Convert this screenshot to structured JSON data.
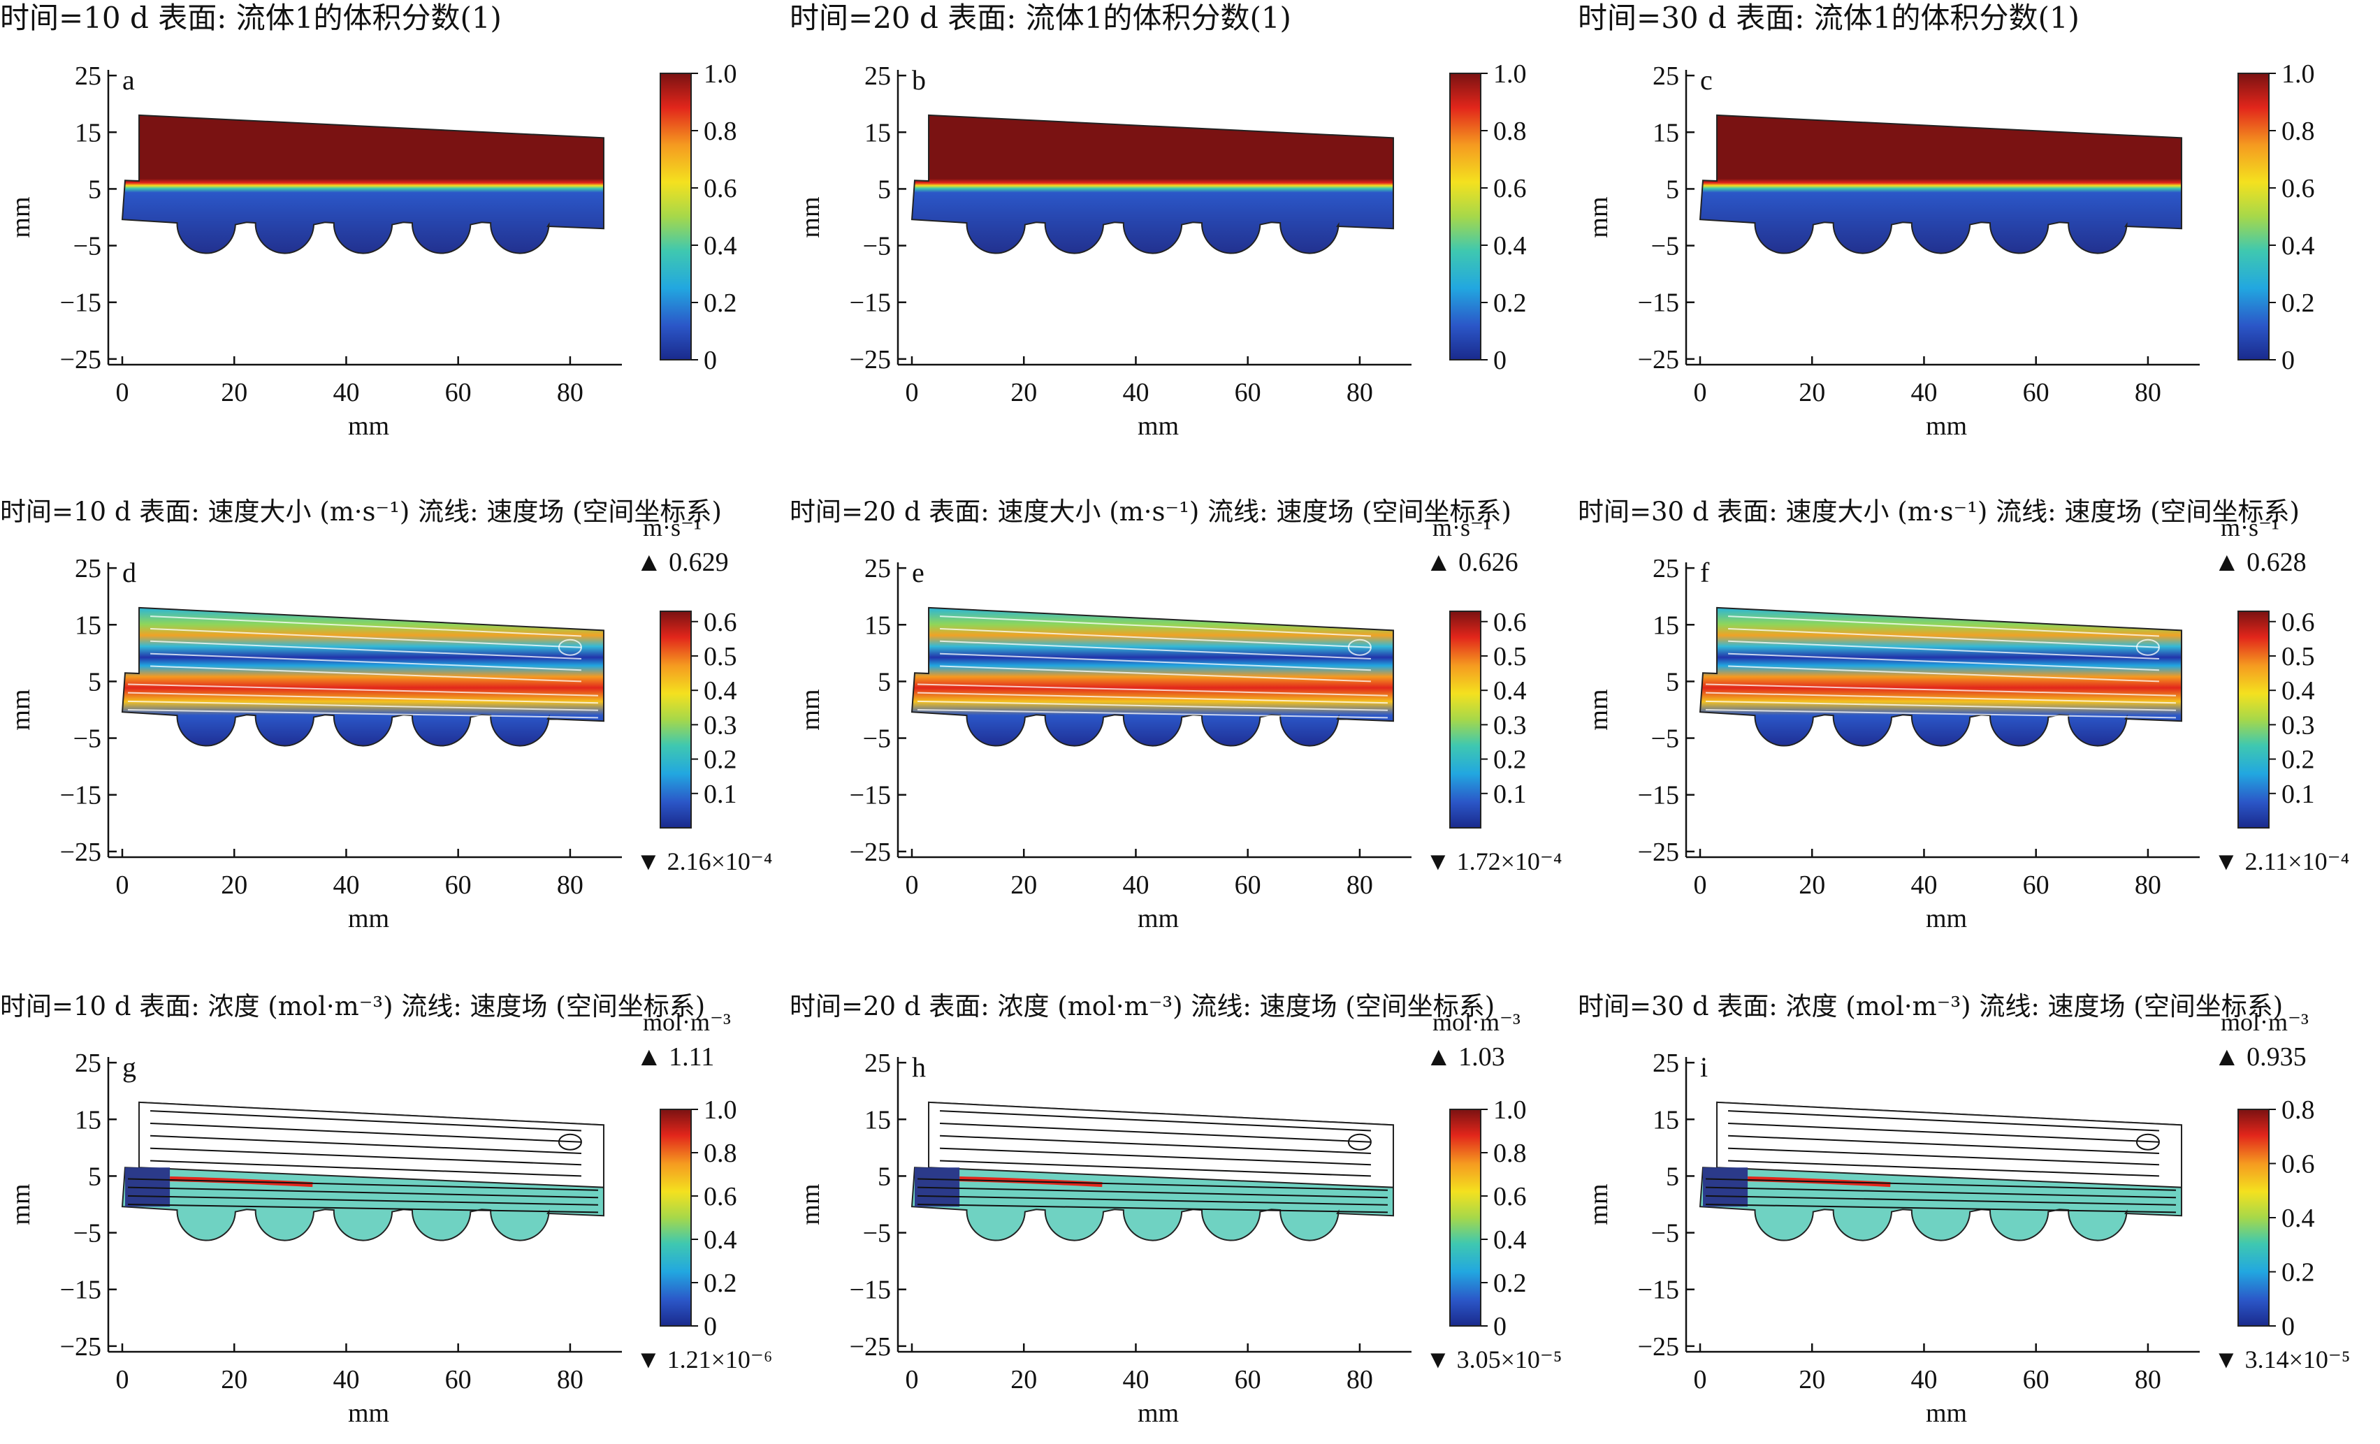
{
  "figure": {
    "rows": [
      {
        "key": "vf",
        "colorbar": {
          "ticks": [
            "1.0",
            "0.8",
            "0.6",
            "0.4",
            "0.2",
            "0"
          ],
          "unit": "",
          "max": "",
          "min": ""
        }
      },
      {
        "key": "vel",
        "colorbar": {
          "ticks": [
            "0.6",
            "0.5",
            "0.4",
            "0.3",
            "0.2",
            "0.1"
          ],
          "unit": "m·s⁻¹"
        }
      },
      {
        "key": "conc",
        "colorbar": {
          "unit": "mol·m⁻³"
        }
      }
    ],
    "panels": [
      {
        "id": "a",
        "title": "时间=10 d     表面: 流体1的体积分数(1)",
        "cb_ticks": [
          "1.0",
          "0.8",
          "0.6",
          "0.4",
          "0.2",
          "0"
        ],
        "cb_unit": "",
        "cb_max": "",
        "cb_min": ""
      },
      {
        "id": "b",
        "title": "时间=20 d     表面: 流体1的体积分数(1)",
        "cb_ticks": [
          "1.0",
          "0.8",
          "0.6",
          "0.4",
          "0.2",
          "0"
        ],
        "cb_unit": "",
        "cb_max": "",
        "cb_min": ""
      },
      {
        "id": "c",
        "title": "时间=30 d     表面: 流体1的体积分数(1)",
        "cb_ticks": [
          "1.0",
          "0.8",
          "0.6",
          "0.4",
          "0.2",
          "0"
        ],
        "cb_unit": "",
        "cb_max": "",
        "cb_min": ""
      },
      {
        "id": "d",
        "title": "时间=10 d  表面: 速度大小 (m·s⁻¹) 流线: 速度场 (空间坐标系)",
        "cb_ticks": [
          "0.6",
          "0.5",
          "0.4",
          "0.3",
          "0.2",
          "0.1"
        ],
        "cb_unit": "m·s⁻¹",
        "cb_max": "▲ 0.629",
        "cb_min": "▼ 2.16×10⁻⁴"
      },
      {
        "id": "e",
        "title": "时间=20 d  表面: 速度大小 (m·s⁻¹) 流线: 速度场 (空间坐标系)",
        "cb_ticks": [
          "0.6",
          "0.5",
          "0.4",
          "0.3",
          "0.2",
          "0.1"
        ],
        "cb_unit": "m·s⁻¹",
        "cb_max": "▲ 0.626",
        "cb_min": "▼ 1.72×10⁻⁴"
      },
      {
        "id": "f",
        "title": "时间=30 d  表面: 速度大小 (m·s⁻¹) 流线: 速度场 (空间坐标系)",
        "cb_ticks": [
          "0.6",
          "0.5",
          "0.4",
          "0.3",
          "0.2",
          "0.1"
        ],
        "cb_unit": "m·s⁻¹",
        "cb_max": "▲ 0.628",
        "cb_min": "▼ 2.11×10⁻⁴"
      },
      {
        "id": "g",
        "title": "时间=10 d   表面: 浓度 (mol·m⁻³) 流线: 速度场 (空间坐标系)",
        "cb_ticks": [
          "1.0",
          "0.8",
          "0.6",
          "0.4",
          "0.2",
          "0"
        ],
        "cb_unit": "mol·m⁻³",
        "cb_max": "▲ 1.11",
        "cb_min": "▼ 1.21×10⁻⁶"
      },
      {
        "id": "h",
        "title": "时间=20 d   表面: 浓度 (mol·m⁻³) 流线: 速度场 (空间坐标系)",
        "cb_ticks": [
          "1.0",
          "0.8",
          "0.6",
          "0.4",
          "0.2",
          "0"
        ],
        "cb_unit": "mol·m⁻³",
        "cb_max": "▲ 1.03",
        "cb_min": "▼ 3.05×10⁻⁵"
      },
      {
        "id": "i",
        "title": "时间=30 d   表面: 浓度 (mol·m⁻³) 流线: 速度场 (空间坐标系)",
        "cb_ticks": [
          "0.8",
          "0.6",
          "0.4",
          "0.2",
          "0"
        ],
        "cb_unit": "mol·m⁻³",
        "cb_max": "▲ 0.935",
        "cb_min": "▼ 3.14×10⁻⁵"
      }
    ],
    "axes": {
      "x_ticks": [
        "0",
        "20",
        "40",
        "60",
        "80"
      ],
      "y_ticks": [
        "25",
        "15",
        "5",
        "−5",
        "−15",
        "−25"
      ],
      "xlabel": "mm",
      "ylabel": "mm"
    }
  },
  "colors": {
    "vf_top": "#7a1212",
    "vf_bottom": "#2a3f9e",
    "vel_low": "#2233aa",
    "vel_high": "#d02a1c",
    "conc_field": "#6fd2c2",
    "conc_inlet": "#2b3a8a",
    "jet": [
      "#1a2a8c",
      "#2b57c8",
      "#22a7e0",
      "#3fc8b0",
      "#a6d84a",
      "#f4e11f",
      "#f59a20",
      "#e2261b",
      "#7a1212"
    ]
  }
}
